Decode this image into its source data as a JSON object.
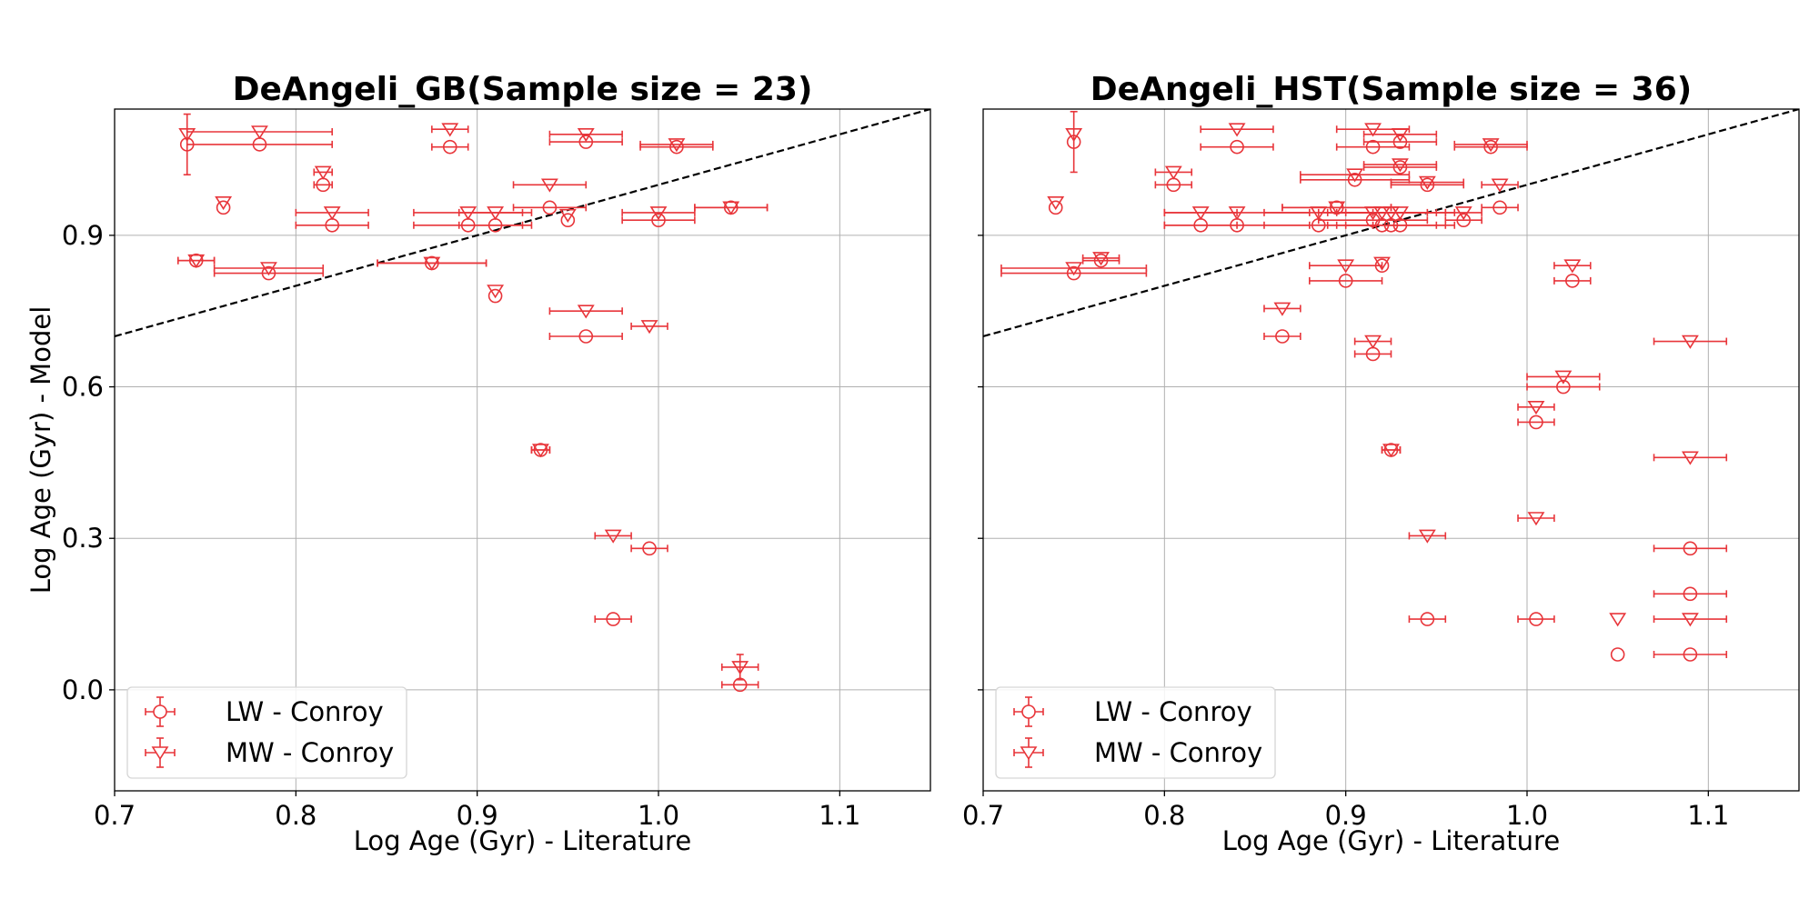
{
  "chart_data": [
    {
      "type": "scatter",
      "title": "DeAngeli_GB(Sample size = 23)",
      "xlabel": "Log Age (Gyr) - Literature",
      "ylabel": "Log Age (Gyr) - Model",
      "xlim": [
        0.7,
        1.15
      ],
      "ylim": [
        -0.2,
        1.15
      ],
      "xticks": [
        "0.7",
        "0.8",
        "0.9",
        "1.0",
        "1.1"
      ],
      "yticks": [
        "0.0",
        "0.3",
        "0.6",
        "0.9"
      ],
      "grid": true,
      "reference_line": "y = x",
      "legend_position": "lower-left",
      "color": "#e8353a",
      "series": [
        {
          "name": "LW - Conroy",
          "marker": "circle",
          "points": [
            {
              "x": 0.74,
              "xerr": 0.0,
              "y": 1.08,
              "yerr": 0.06
            },
            {
              "x": 0.78,
              "xerr": 0.04,
              "y": 1.08,
              "yerr": 0.0
            },
            {
              "x": 0.745,
              "xerr": 0.01,
              "y": 0.85,
              "yerr": 0.0
            },
            {
              "x": 0.76,
              "xerr": 0.0,
              "y": 0.955,
              "yerr": 0.0
            },
            {
              "x": 0.785,
              "xerr": 0.03,
              "y": 0.825,
              "yerr": 0.0
            },
            {
              "x": 0.815,
              "xerr": 0.005,
              "y": 1.0,
              "yerr": 0.0
            },
            {
              "x": 0.82,
              "xerr": 0.02,
              "y": 0.92,
              "yerr": 0.0
            },
            {
              "x": 0.875,
              "xerr": 0.03,
              "y": 0.845,
              "yerr": 0.0
            },
            {
              "x": 0.885,
              "xerr": 0.01,
              "y": 1.075,
              "yerr": 0.0
            },
            {
              "x": 0.895,
              "xerr": 0.03,
              "y": 0.92,
              "yerr": 0.0
            },
            {
              "x": 0.91,
              "xerr": 0.02,
              "y": 0.92,
              "yerr": 0.0
            },
            {
              "x": 0.91,
              "xerr": 0.0,
              "y": 0.78,
              "yerr": 0.0
            },
            {
              "x": 0.935,
              "xerr": 0.005,
              "y": 0.475,
              "yerr": 0.0
            },
            {
              "x": 0.94,
              "xerr": 0.02,
              "y": 0.955,
              "yerr": 0.0
            },
            {
              "x": 0.95,
              "xerr": 0.0,
              "y": 0.93,
              "yerr": 0.0
            },
            {
              "x": 0.96,
              "xerr": 0.02,
              "y": 1.085,
              "yerr": 0.0
            },
            {
              "x": 0.96,
              "xerr": 0.02,
              "y": 0.7,
              "yerr": 0.0
            },
            {
              "x": 0.975,
              "xerr": 0.01,
              "y": 0.14,
              "yerr": 0.0
            },
            {
              "x": 0.995,
              "xerr": 0.01,
              "y": 0.28,
              "yerr": 0.0
            },
            {
              "x": 1.0,
              "xerr": 0.02,
              "y": 0.93,
              "yerr": 0.0
            },
            {
              "x": 1.01,
              "xerr": 0.02,
              "y": 1.075,
              "yerr": 0.0
            },
            {
              "x": 1.04,
              "xerr": 0.02,
              "y": 0.955,
              "yerr": 0.0
            },
            {
              "x": 1.045,
              "xerr": 0.01,
              "y": 0.01,
              "yerr": 0.0
            }
          ]
        },
        {
          "name": "MW - Conroy",
          "marker": "triangle-down",
          "points": [
            {
              "x": 0.74,
              "xerr": 0.0,
              "y": 1.1,
              "yerr": 0.0
            },
            {
              "x": 0.78,
              "xerr": 0.04,
              "y": 1.105,
              "yerr": 0.0
            },
            {
              "x": 0.745,
              "xerr": 0.01,
              "y": 0.85,
              "yerr": 0.0
            },
            {
              "x": 0.76,
              "xerr": 0.0,
              "y": 0.965,
              "yerr": 0.0
            },
            {
              "x": 0.785,
              "xerr": 0.03,
              "y": 0.835,
              "yerr": 0.0
            },
            {
              "x": 0.815,
              "xerr": 0.005,
              "y": 1.025,
              "yerr": 0.0
            },
            {
              "x": 0.82,
              "xerr": 0.02,
              "y": 0.945,
              "yerr": 0.0
            },
            {
              "x": 0.875,
              "xerr": 0.03,
              "y": 0.845,
              "yerr": 0.0
            },
            {
              "x": 0.885,
              "xerr": 0.01,
              "y": 1.11,
              "yerr": 0.0
            },
            {
              "x": 0.895,
              "xerr": 0.03,
              "y": 0.945,
              "yerr": 0.0
            },
            {
              "x": 0.91,
              "xerr": 0.02,
              "y": 0.945,
              "yerr": 0.0
            },
            {
              "x": 0.91,
              "xerr": 0.0,
              "y": 0.79,
              "yerr": 0.0
            },
            {
              "x": 0.935,
              "xerr": 0.005,
              "y": 0.475,
              "yerr": 0.0
            },
            {
              "x": 0.94,
              "xerr": 0.02,
              "y": 1.0,
              "yerr": 0.0
            },
            {
              "x": 0.95,
              "xerr": 0.0,
              "y": 0.94,
              "yerr": 0.0
            },
            {
              "x": 0.96,
              "xerr": 0.02,
              "y": 1.1,
              "yerr": 0.0
            },
            {
              "x": 0.96,
              "xerr": 0.02,
              "y": 0.75,
              "yerr": 0.0
            },
            {
              "x": 0.975,
              "xerr": 0.01,
              "y": 0.305,
              "yerr": 0.0
            },
            {
              "x": 0.995,
              "xerr": 0.01,
              "y": 0.72,
              "yerr": 0.0
            },
            {
              "x": 1.0,
              "xerr": 0.02,
              "y": 0.945,
              "yerr": 0.0
            },
            {
              "x": 1.01,
              "xerr": 0.02,
              "y": 1.08,
              "yerr": 0.0
            },
            {
              "x": 1.04,
              "xerr": 0.02,
              "y": 0.955,
              "yerr": 0.0
            },
            {
              "x": 1.045,
              "xerr": 0.01,
              "y": 0.045,
              "yerr": 0.025
            }
          ]
        }
      ]
    },
    {
      "type": "scatter",
      "title": "DeAngeli_HST(Sample size = 36)",
      "xlabel": "Log Age (Gyr) - Literature",
      "ylabel": "",
      "xlim": [
        0.7,
        1.15
      ],
      "ylim": [
        -0.2,
        1.15
      ],
      "xticks": [
        "0.7",
        "0.8",
        "0.9",
        "1.0",
        "1.1"
      ],
      "yticks": [],
      "grid": true,
      "reference_line": "y = x",
      "legend_position": "lower-left",
      "color": "#e8353a",
      "series": [
        {
          "name": "LW - Conroy",
          "marker": "circle",
          "points": [
            {
              "x": 0.75,
              "xerr": 0.0,
              "y": 1.085,
              "yerr": 0.06
            },
            {
              "x": 0.74,
              "xerr": 0.0,
              "y": 0.955,
              "yerr": 0.0
            },
            {
              "x": 0.75,
              "xerr": 0.04,
              "y": 0.825,
              "yerr": 0.0
            },
            {
              "x": 0.765,
              "xerr": 0.01,
              "y": 0.85,
              "yerr": 0.0
            },
            {
              "x": 0.805,
              "xerr": 0.01,
              "y": 1.0,
              "yerr": 0.0
            },
            {
              "x": 0.82,
              "xerr": 0.02,
              "y": 0.92,
              "yerr": 0.0
            },
            {
              "x": 0.84,
              "xerr": 0.02,
              "y": 1.075,
              "yerr": 0.0
            },
            {
              "x": 0.84,
              "xerr": 0.04,
              "y": 0.92,
              "yerr": 0.0
            },
            {
              "x": 0.865,
              "xerr": 0.01,
              "y": 0.7,
              "yerr": 0.0
            },
            {
              "x": 0.885,
              "xerr": 0.03,
              "y": 0.92,
              "yerr": 0.0
            },
            {
              "x": 0.895,
              "xerr": 0.03,
              "y": 0.955,
              "yerr": 0.0
            },
            {
              "x": 0.9,
              "xerr": 0.02,
              "y": 0.81,
              "yerr": 0.0
            },
            {
              "x": 0.905,
              "xerr": 0.03,
              "y": 1.01,
              "yerr": 0.0
            },
            {
              "x": 0.915,
              "xerr": 0.02,
              "y": 1.075,
              "yerr": 0.0
            },
            {
              "x": 0.915,
              "xerr": 0.01,
              "y": 0.665,
              "yerr": 0.0
            },
            {
              "x": 0.915,
              "xerr": 0.03,
              "y": 0.93,
              "yerr": 0.0
            },
            {
              "x": 0.92,
              "xerr": 0.03,
              "y": 0.92,
              "yerr": 0.0
            },
            {
              "x": 0.92,
              "xerr": 0.0,
              "y": 0.84,
              "yerr": 0.0
            },
            {
              "x": 0.925,
              "xerr": 0.03,
              "y": 0.92,
              "yerr": 0.0
            },
            {
              "x": 0.925,
              "xerr": 0.005,
              "y": 0.475,
              "yerr": 0.0
            },
            {
              "x": 0.93,
              "xerr": 0.02,
              "y": 1.085,
              "yerr": 0.0
            },
            {
              "x": 0.93,
              "xerr": 0.02,
              "y": 1.035,
              "yerr": 0.0
            },
            {
              "x": 0.93,
              "xerr": 0.03,
              "y": 0.92,
              "yerr": 0.0
            },
            {
              "x": 0.945,
              "xerr": 0.02,
              "y": 1.0,
              "yerr": 0.0
            },
            {
              "x": 0.945,
              "xerr": 0.01,
              "y": 0.14,
              "yerr": 0.0
            },
            {
              "x": 0.965,
              "xerr": 0.01,
              "y": 0.93,
              "yerr": 0.0
            },
            {
              "x": 0.98,
              "xerr": 0.02,
              "y": 1.075,
              "yerr": 0.0
            },
            {
              "x": 0.985,
              "xerr": 0.01,
              "y": 0.955,
              "yerr": 0.0
            },
            {
              "x": 1.005,
              "xerr": 0.01,
              "y": 0.53,
              "yerr": 0.0
            },
            {
              "x": 1.005,
              "xerr": 0.01,
              "y": 0.14,
              "yerr": 0.0
            },
            {
              "x": 1.02,
              "xerr": 0.02,
              "y": 0.6,
              "yerr": 0.0
            },
            {
              "x": 1.025,
              "xerr": 0.01,
              "y": 0.81,
              "yerr": 0.0
            },
            {
              "x": 1.05,
              "xerr": 0.0,
              "y": 0.07,
              "yerr": 0.0
            },
            {
              "x": 1.09,
              "xerr": 0.02,
              "y": 0.28,
              "yerr": 0.0
            },
            {
              "x": 1.09,
              "xerr": 0.02,
              "y": 0.19,
              "yerr": 0.0
            },
            {
              "x": 1.09,
              "xerr": 0.02,
              "y": 0.07,
              "yerr": 0.0
            }
          ]
        },
        {
          "name": "MW - Conroy",
          "marker": "triangle-down",
          "points": [
            {
              "x": 0.75,
              "xerr": 0.0,
              "y": 1.1,
              "yerr": 0.0
            },
            {
              "x": 0.74,
              "xerr": 0.0,
              "y": 0.965,
              "yerr": 0.0
            },
            {
              "x": 0.75,
              "xerr": 0.04,
              "y": 0.835,
              "yerr": 0.0
            },
            {
              "x": 0.765,
              "xerr": 0.01,
              "y": 0.855,
              "yerr": 0.0
            },
            {
              "x": 0.805,
              "xerr": 0.01,
              "y": 1.025,
              "yerr": 0.0
            },
            {
              "x": 0.82,
              "xerr": 0.02,
              "y": 0.945,
              "yerr": 0.0
            },
            {
              "x": 0.84,
              "xerr": 0.02,
              "y": 1.11,
              "yerr": 0.0
            },
            {
              "x": 0.84,
              "xerr": 0.04,
              "y": 0.945,
              "yerr": 0.0
            },
            {
              "x": 0.865,
              "xerr": 0.01,
              "y": 0.755,
              "yerr": 0.0
            },
            {
              "x": 0.885,
              "xerr": 0.03,
              "y": 0.945,
              "yerr": 0.0
            },
            {
              "x": 0.895,
              "xerr": 0.03,
              "y": 0.955,
              "yerr": 0.0
            },
            {
              "x": 0.9,
              "xerr": 0.02,
              "y": 0.84,
              "yerr": 0.0
            },
            {
              "x": 0.905,
              "xerr": 0.03,
              "y": 1.02,
              "yerr": 0.0
            },
            {
              "x": 0.915,
              "xerr": 0.02,
              "y": 1.11,
              "yerr": 0.0
            },
            {
              "x": 0.915,
              "xerr": 0.01,
              "y": 0.69,
              "yerr": 0.0
            },
            {
              "x": 0.915,
              "xerr": 0.03,
              "y": 0.945,
              "yerr": 0.0
            },
            {
              "x": 0.92,
              "xerr": 0.03,
              "y": 0.945,
              "yerr": 0.0
            },
            {
              "x": 0.92,
              "xerr": 0.0,
              "y": 0.845,
              "yerr": 0.0
            },
            {
              "x": 0.925,
              "xerr": 0.03,
              "y": 0.945,
              "yerr": 0.0
            },
            {
              "x": 0.925,
              "xerr": 0.005,
              "y": 0.475,
              "yerr": 0.0
            },
            {
              "x": 0.93,
              "xerr": 0.02,
              "y": 1.1,
              "yerr": 0.0
            },
            {
              "x": 0.93,
              "xerr": 0.02,
              "y": 1.04,
              "yerr": 0.0
            },
            {
              "x": 0.93,
              "xerr": 0.03,
              "y": 0.945,
              "yerr": 0.0
            },
            {
              "x": 0.945,
              "xerr": 0.02,
              "y": 1.005,
              "yerr": 0.0
            },
            {
              "x": 0.945,
              "xerr": 0.01,
              "y": 0.305,
              "yerr": 0.0
            },
            {
              "x": 0.965,
              "xerr": 0.01,
              "y": 0.945,
              "yerr": 0.0
            },
            {
              "x": 0.98,
              "xerr": 0.02,
              "y": 1.08,
              "yerr": 0.0
            },
            {
              "x": 0.985,
              "xerr": 0.01,
              "y": 1.0,
              "yerr": 0.0
            },
            {
              "x": 1.005,
              "xerr": 0.01,
              "y": 0.56,
              "yerr": 0.0
            },
            {
              "x": 1.005,
              "xerr": 0.01,
              "y": 0.34,
              "yerr": 0.0
            },
            {
              "x": 1.02,
              "xerr": 0.02,
              "y": 0.62,
              "yerr": 0.0
            },
            {
              "x": 1.025,
              "xerr": 0.01,
              "y": 0.84,
              "yerr": 0.0
            },
            {
              "x": 1.05,
              "xerr": 0.0,
              "y": 0.14,
              "yerr": 0.0
            },
            {
              "x": 1.09,
              "xerr": 0.02,
              "y": 0.69,
              "yerr": 0.0
            },
            {
              "x": 1.09,
              "xerr": 0.02,
              "y": 0.46,
              "yerr": 0.0
            },
            {
              "x": 1.09,
              "xerr": 0.02,
              "y": 0.14,
              "yerr": 0.0
            }
          ]
        }
      ]
    }
  ]
}
